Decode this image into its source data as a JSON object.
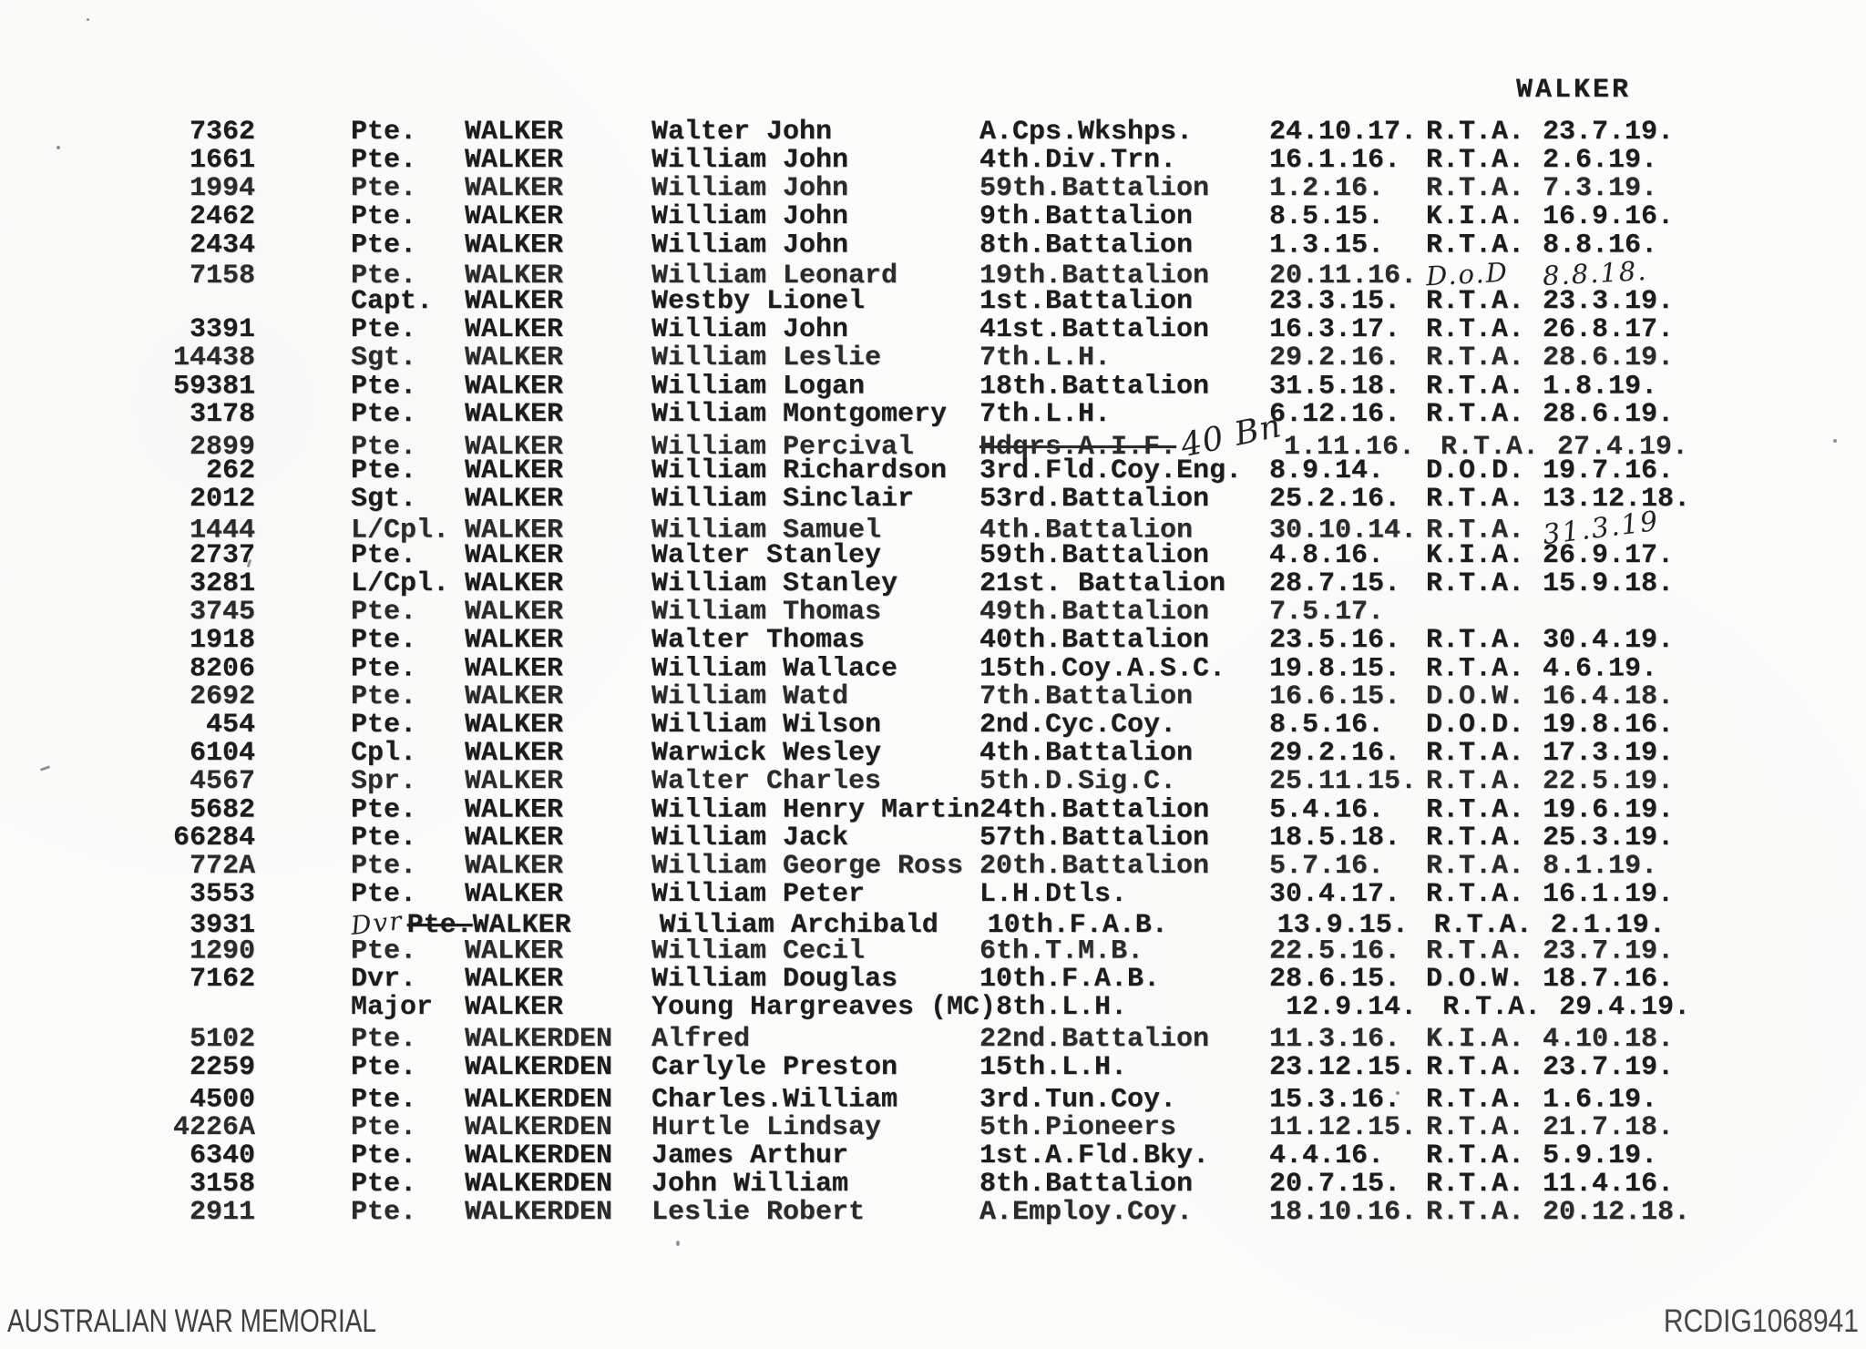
{
  "page_header": "WALKER",
  "footer": {
    "left": "AUSTRALIAN WAR MEMORIAL",
    "right": "RCDIG1068941"
  },
  "columns": [
    "service_number",
    "rank",
    "surname",
    "given_names",
    "unit",
    "enlistment_date",
    "fate",
    "return_date"
  ],
  "ink_color": "#1c1c1c",
  "paper_color": "#fcfcfb",
  "rows": [
    {
      "no": "7362",
      "rank": "Pte.",
      "surname": "WALKER",
      "given": "Walter John",
      "unit": "A.Cps.Wkshps.",
      "d1": "24.10.17.",
      "fate": "R.T.A.",
      "d2": "23.7.19."
    },
    {
      "no": "1661",
      "rank": "Pte.",
      "surname": "WALKER",
      "given": "William John",
      "unit": "4th.Div.Trn.",
      "d1": "16.1.16.",
      "fate": "R.T.A.",
      "d2": "2.6.19."
    },
    {
      "no": "1994",
      "rank": "Pte.",
      "surname": "WALKER",
      "given": "William John",
      "unit": "59th.Battalion",
      "d1": "1.2.16.",
      "fate": "R.T.A.",
      "d2": "7.3.19."
    },
    {
      "no": "2462",
      "rank": "Pte.",
      "surname": "WALKER",
      "given": "William John",
      "unit": "9th.Battalion",
      "d1": "8.5.15.",
      "fate": "K.I.A.",
      "d2": "16.9.16."
    },
    {
      "no": "2434",
      "rank": "Pte.",
      "surname": "WALKER",
      "given": "William John",
      "unit": "8th.Battalion",
      "d1": "1.3.15.",
      "fate": "R.T.A.",
      "d2": "8.8.16."
    },
    {
      "no": "7158",
      "rank": "Pte.",
      "surname": "WALKER",
      "given": "William Leonard",
      "unit": "19th.Battalion",
      "d1": "20.11.16.",
      "fate": "D.o.D",
      "d2": "8.8.18.",
      "hw": true
    },
    {
      "no": "",
      "rank": "Capt.",
      "surname": "WALKER",
      "given": "Westby Lionel",
      "unit": "1st.Battalion",
      "d1": "23.3.15.",
      "fate": "R.T.A.",
      "d2": "23.3.19."
    },
    {
      "no": "3391",
      "rank": "Pte.",
      "surname": "WALKER",
      "given": "William John",
      "unit": "41st.Battalion",
      "d1": "16.3.17.",
      "fate": "R.T.A.",
      "d2": "26.8.17."
    },
    {
      "no": "14438",
      "rank": "Sgt.",
      "surname": "WALKER",
      "given": "William Leslie",
      "unit": "7th.L.H.",
      "d1": "29.2.16.",
      "fate": "R.T.A.",
      "d2": "28.6.19."
    },
    {
      "no": "59381",
      "rank": "Pte.",
      "surname": "WALKER",
      "given": "William Logan",
      "unit": "18th.Battalion",
      "d1": "31.5.18.",
      "fate": "R.T.A.",
      "d2": "1.8.19."
    },
    {
      "no": "3178",
      "rank": "Pte.",
      "surname": "WALKER",
      "given": "William Montgomery",
      "unit": "7th.L.H.",
      "d1": "6.12.16.",
      "fate": "R.T.A.",
      "d2": "28.6.19."
    },
    {
      "no": "2899",
      "rank": "Pte.",
      "surname": "WALKER",
      "given": "William Percival",
      "unit": "Hdqrs.A.I.F.",
      "d1": "1.11.16.",
      "fate": "R.T.A.",
      "d2": "27.4.19.",
      "unit_struck": true,
      "unit_hw": "40 Bn"
    },
    {
      "no": "262",
      "rank": "Pte.",
      "surname": "WALKER",
      "given": "William Richardson",
      "unit": "3rd.Fld.Coy.Eng.",
      "d1": "8.9.14.",
      "fate": "D.O.D.",
      "d2": "19.7.16."
    },
    {
      "no": "2012",
      "rank": "Sgt.",
      "surname": "WALKER",
      "given": "William Sinclair",
      "unit": "53rd.Battalion",
      "d1": "25.2.16.",
      "fate": "R.T.A.",
      "d2": "13.12.18."
    },
    {
      "no": "1444",
      "rank": "L/Cpl.",
      "surname": "WALKER",
      "given": "William Samuel",
      "unit": "4th.Battalion",
      "d1": "30.10.14.",
      "fate": "R.T.A.",
      "d2": "31.3.19",
      "d2_hw": true
    },
    {
      "no": "2737",
      "rank": "Pte.",
      "surname": "WALKER",
      "given": "Walter Stanley",
      "unit": "59th.Battalion",
      "d1": "4.8.16.",
      "fate": "K.I.A.",
      "d2": "26.9.17."
    },
    {
      "no": "3281",
      "rank": "L/Cpl.",
      "surname": "WALKER",
      "given": "William Stanley",
      "unit": "21st. Battalion",
      "d1": "28.7.15.",
      "fate": "R.T.A.",
      "d2": "15.9.18."
    },
    {
      "no": "3745",
      "rank": "Pte.",
      "surname": "WALKER",
      "given": "William Thomas",
      "unit": "49th.Battalion",
      "d1": "7.5.17.",
      "fate": "",
      "d2": ""
    },
    {
      "no": "1918",
      "rank": "Pte.",
      "surname": "WALKER",
      "given": "Walter Thomas",
      "unit": "40th.Battalion",
      "d1": "23.5.16.",
      "fate": "R.T.A.",
      "d2": "30.4.19."
    },
    {
      "no": "8206",
      "rank": "Pte.",
      "surname": "WALKER",
      "given": "William Wallace",
      "unit": "15th.Coy.A.S.C.",
      "d1": "19.8.15.",
      "fate": "R.T.A.",
      "d2": "4.6.19."
    },
    {
      "no": "2692",
      "rank": "Pte.",
      "surname": "WALKER",
      "given": "William Watd",
      "unit": "7th.Battalion",
      "d1": "16.6.15.",
      "fate": "D.O.W.",
      "d2": "16.4.18."
    },
    {
      "no": "454",
      "rank": "Pte.",
      "surname": "WALKER",
      "given": "William Wilson",
      "unit": "2nd.Cyc.Coy.",
      "d1": "8.5.16.",
      "fate": "D.O.D.",
      "d2": "19.8.16."
    },
    {
      "no": "6104",
      "rank": "Cpl.",
      "surname": "WALKER",
      "given": "Warwick Wesley",
      "unit": "4th.Battalion",
      "d1": "29.2.16.",
      "fate": "R.T.A.",
      "d2": "17.3.19."
    },
    {
      "no": "4567",
      "rank": "Spr.",
      "surname": "WALKER",
      "given": "Walter Charles",
      "unit": "5th.D.Sig.C.",
      "d1": "25.11.15.",
      "fate": "R.T.A.",
      "d2": "22.5.19."
    },
    {
      "no": "5682",
      "rank": "Pte.",
      "surname": "WALKER",
      "given": "William Henry Martin",
      "unit": "24th.Battalion",
      "d1": "5.4.16.",
      "fate": "R.T.A.",
      "d2": "19.6.19."
    },
    {
      "no": "66284",
      "rank": "Pte.",
      "surname": "WALKER",
      "given": "William Jack",
      "unit": "57th.Battalion",
      "d1": "18.5.18.",
      "fate": "R.T.A.",
      "d2": "25.3.19."
    },
    {
      "no": "772A",
      "rank": "Pte.",
      "surname": "WALKER",
      "given": "William George Ross",
      "unit": "20th.Battalion",
      "d1": "5.7.16.",
      "fate": "R.T.A.",
      "d2": "8.1.19."
    },
    {
      "no": "3553",
      "rank": "Pte.",
      "surname": "WALKER",
      "given": "William Peter",
      "unit": "L.H.Dtls.",
      "d1": "30.4.17.",
      "fate": "R.T.A.",
      "d2": "16.1.19."
    },
    {
      "no": "3931",
      "rank": "Pte.",
      "surname": "WALKER",
      "given": "William Archibald",
      "unit": "10th.F.A.B.",
      "d1": "13.9.15.",
      "fate": "R.T.A.",
      "d2": "2.1.19.",
      "rank_struck": true,
      "rank_hw": "Dvr"
    },
    {
      "no": "1290",
      "rank": "Pte.",
      "surname": "WALKER",
      "given": "William Cecil",
      "unit": "6th.T.M.B.",
      "d1": "22.5.16.",
      "fate": "R.T.A.",
      "d2": "23.7.19."
    },
    {
      "no": "7162",
      "rank": "Dvr.",
      "surname": "WALKER",
      "given": "William Douglas",
      "unit": "10th.F.A.B.",
      "d1": "28.6.15.",
      "fate": "D.O.W.",
      "d2": "18.7.16."
    },
    {
      "no": "",
      "rank": "Major",
      "surname": "WALKER",
      "given": "Young Hargreaves (MC)",
      "unit": "8th.L.H.",
      "d1": "12.9.14.",
      "fate": "R.T.A.",
      "d2": "29.4.19."
    },
    {
      "no": "5102",
      "rank": "Pte.",
      "surname": "WALKERDEN",
      "given": "Alfred",
      "unit": "22nd.Battalion",
      "d1": "11.3.16.",
      "fate": "K.I.A.",
      "d2": "4.10.18."
    },
    {
      "no": "2259",
      "rank": "Pte.",
      "surname": "WALKERDEN",
      "given": "Carlyle Preston",
      "unit": "15th.L.H.",
      "d1": "23.12.15.",
      "fate": "R.T.A.",
      "d2": "23.7.19."
    },
    {
      "no": "4500",
      "rank": "Pte.",
      "surname": "WALKERDEN",
      "given": "Charles.William",
      "unit": "3rd.Tun.Coy.",
      "d1": "15.3.16.",
      "fate": "R.T.A.",
      "d2": "1.6.19."
    },
    {
      "no": "4226A",
      "rank": "Pte.",
      "surname": "WALKERDEN",
      "given": "Hurtle Lindsay",
      "unit": "5th.Pioneers",
      "d1": "11.12.15.",
      "fate": "R.T.A.",
      "d2": "21.7.18."
    },
    {
      "no": "6340",
      "rank": "Pte.",
      "surname": "WALKERDEN",
      "given": "James Arthur",
      "unit": "1st.A.Fld.Bky.",
      "d1": "4.4.16.",
      "fate": "R.T.A.",
      "d2": "5.9.19."
    },
    {
      "no": "3158",
      "rank": "Pte.",
      "surname": "WALKERDEN",
      "given": "John William",
      "unit": "8th.Battalion",
      "d1": "20.7.15.",
      "fate": "R.T.A.",
      "d2": "11.4.16."
    },
    {
      "no": "2911",
      "rank": "Pte.",
      "surname": "WALKERDEN",
      "given": "Leslie Robert",
      "unit": "A.Employ.Coy.",
      "d1": "18.10.16.",
      "fate": "R.T.A.",
      "d2": "20.12.18."
    }
  ]
}
